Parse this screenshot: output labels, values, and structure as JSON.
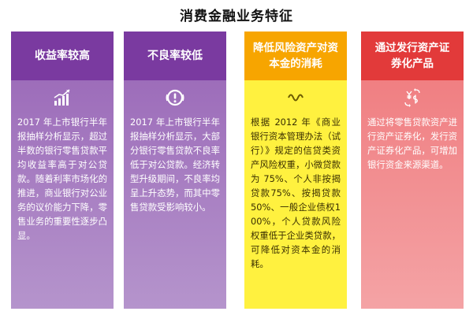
{
  "title": "消费金融业务特征",
  "cards": [
    {
      "title_lines": [
        "收益率较高"
      ],
      "icon": "bar-chart-growth-icon",
      "text": "2017 年上市银行半年报抽样分析显示，超过半数的银行零售贷款平均收益率高于对公贷款。随着利率市场化的推进，商业银行对公业务的议价能力下降，零售业务的重要性逐步凸显。"
    },
    {
      "title_lines": [
        "不良率较低"
      ],
      "icon": "alert-circle-icon",
      "text": "2017 年上市银行半年报抽样分析显示，大部分银行零售贷款不良率低于对公贷款。经济转型升级期间，不良率均呈上升态势，而其中零售贷款受影响较小。"
    },
    {
      "title_lines": [
        "降低风险资产对资",
        "本金的消耗"
      ],
      "icon": "wave-icon",
      "text": "根据 2012 年《商业银行资本管理办法（试行）》规定的信贷类资产风险权重，小微贷款为 75%、个人非按揭贷款75%、按揭贷款 50%、一般企业债权100%，个人贷款风险权重低于企业类贷款，可降低对资本金的消耗。"
    },
    {
      "title_lines": [
        "通过发行资产证",
        "券化产品"
      ],
      "icon": "currency-exchange-icon",
      "text": "通过将零售贷款资产进行资产证券化，发行资产证券化产品，可增加银行资金来源渠道。"
    }
  ],
  "colors": {
    "purple_header": "#7a3aa0",
    "purple_body": "#a77bc2",
    "orange_header": "#f7a500",
    "yellow_body": "#fff13f",
    "red_header": "#e23a3a",
    "pink_body": "#f28f92"
  }
}
